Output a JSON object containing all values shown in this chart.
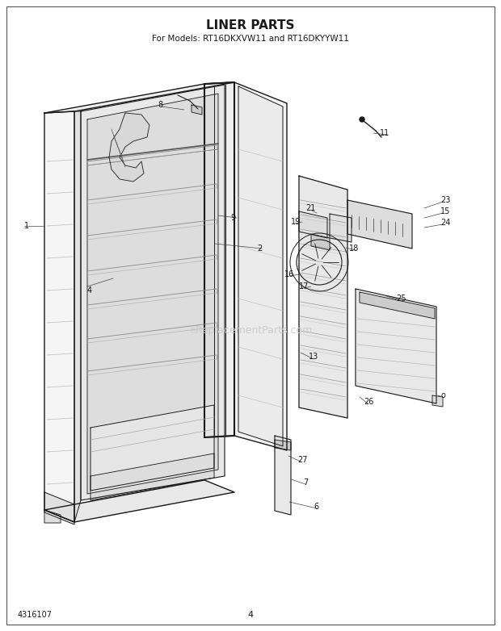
{
  "title": "LINER PARTS",
  "subtitle": "For Models: RT16DKXVW11 and RT16DKYYW11",
  "part_number": "4316107",
  "page": "4",
  "background_color": "#ffffff",
  "line_color": "#1a1a1a",
  "watermark": "eReplacementParts.com",
  "fig_width": 6.2,
  "fig_height": 7.82,
  "dpi": 100
}
